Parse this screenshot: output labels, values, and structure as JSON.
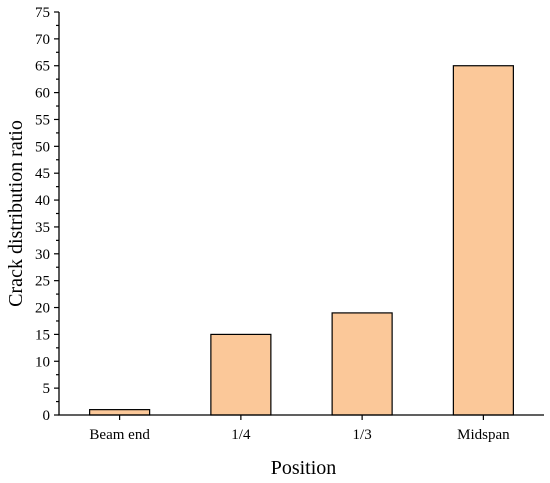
{
  "chart_data": {
    "type": "bar",
    "categories": [
      "Beam end",
      "1/4",
      "1/3",
      "Midspan"
    ],
    "values": [
      1,
      15,
      19,
      65
    ],
    "xlabel": "Position",
    "ylabel": "Crack distribution ratio",
    "ylim": [
      0,
      75
    ],
    "yticks": [
      0,
      5,
      10,
      15,
      20,
      25,
      30,
      35,
      40,
      45,
      50,
      55,
      60,
      65,
      70,
      75
    ],
    "grid": false,
    "legend": "none",
    "colors": {
      "bar_fill": "#fbc899",
      "bar_stroke": "#000000",
      "axis": "#000000"
    }
  }
}
